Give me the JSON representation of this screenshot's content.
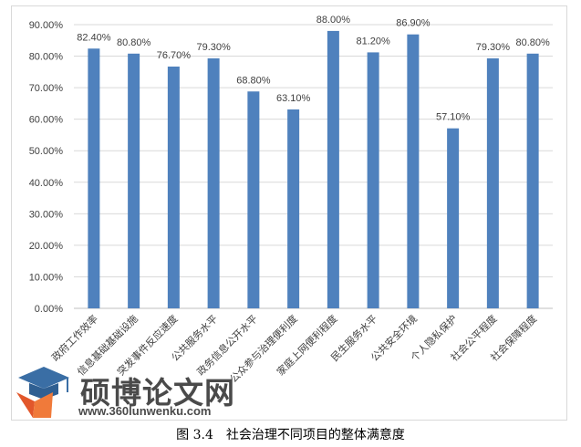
{
  "chart_data": {
    "type": "bar",
    "categories": [
      "政府工作效率",
      "信息基础基础设施",
      "突发事件反应速度",
      "公共服务水平",
      "政务信息公开水平",
      "公众参与治理便利度",
      "家庭上网便利程度",
      "民生服务水平",
      "公共安全环境",
      "个人隐私保护",
      "社会公平程度",
      "社会保障程度"
    ],
    "values": [
      82.4,
      80.8,
      76.7,
      79.3,
      68.8,
      63.1,
      88.0,
      81.2,
      86.9,
      57.1,
      79.3,
      80.8
    ],
    "data_labels": [
      "82.40%",
      "80.80%",
      "76.70%",
      "79.30%",
      "68.80%",
      "63.10%",
      "88.00%",
      "81.20%",
      "86.90%",
      "57.10%",
      "79.30%",
      "80.80%"
    ],
    "y_ticks": [
      0,
      10,
      20,
      30,
      40,
      50,
      60,
      70,
      80,
      90
    ],
    "y_tick_labels": [
      "0.00%",
      "10.00%",
      "20.00%",
      "30.00%",
      "40.00%",
      "50.00%",
      "60.00%",
      "70.00%",
      "80.00%",
      "90.00%"
    ],
    "ylim": [
      0,
      90
    ],
    "grid": true,
    "bar_color": "#4f81bd"
  },
  "caption": "图 3.4　社会治理不同项目的整体满意度",
  "watermark": {
    "brand": "硕博论文网",
    "url": "www.360lunwenku.com"
  }
}
